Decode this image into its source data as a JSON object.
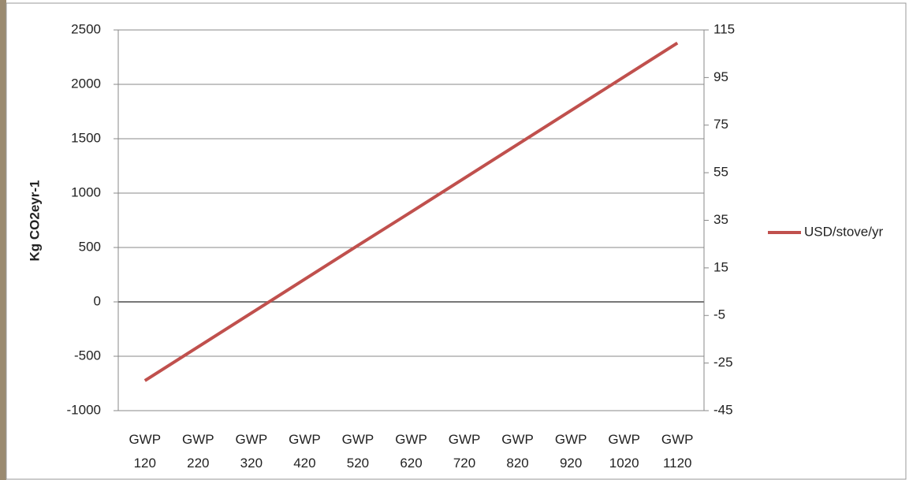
{
  "chart_data": {
    "type": "line",
    "y_label": "Kg CO2eyr-1",
    "categories": [
      "GWP 120",
      "GWP 220",
      "GWP 320",
      "GWP 420",
      "GWP 520",
      "GWP 620",
      "GWP 720",
      "GWP 820",
      "GWP 920",
      "GWP 1020",
      "GWP 1120"
    ],
    "series": [
      {
        "name": "USD/stove/yr",
        "color": "#c0504d",
        "axis": "y2",
        "values": [
          -32.4,
          -18.2,
          -4.0,
          10.2,
          24.4,
          38.5,
          52.7,
          66.9,
          81.1,
          95.3,
          109.5
        ]
      }
    ],
    "ylim": [
      -1000,
      2500
    ],
    "yticks": [
      -1000,
      -500,
      0,
      500,
      1000,
      1500,
      2000,
      2500
    ],
    "y2lim": [
      -45,
      115
    ],
    "y2ticks": [
      -45,
      -25,
      -5,
      15,
      35,
      55,
      75,
      95,
      115
    ],
    "grid": true,
    "legend": "right"
  }
}
